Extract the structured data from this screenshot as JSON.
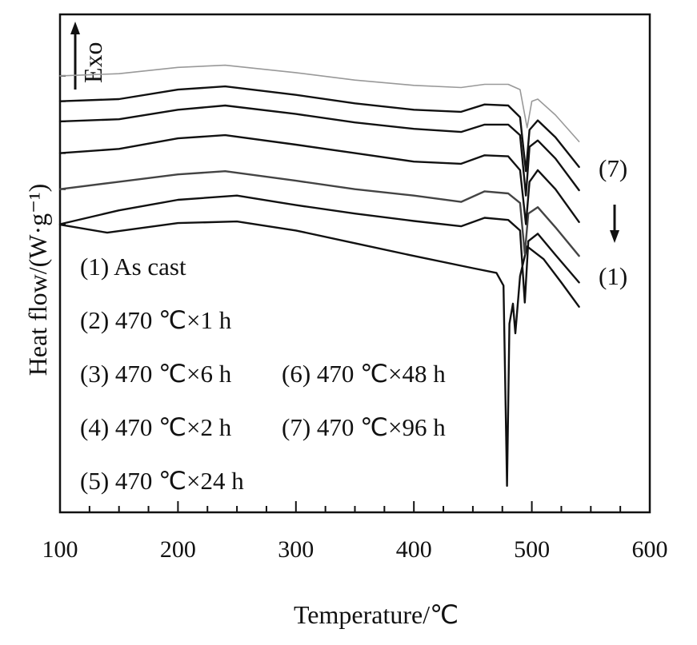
{
  "chart_data": {
    "type": "line",
    "title": "",
    "xlabel": "Temperature/℃",
    "ylabel": "Heat flow/(W·g⁻¹)",
    "exo_label": "Exo",
    "xlim": [
      100,
      600
    ],
    "x_ticks": [
      "100",
      "200",
      "300",
      "400",
      "500",
      "600"
    ],
    "y_ticks_shown": false,
    "grid": false,
    "legend_entries": [
      "(1) As cast",
      "(2) 470 ℃×1 h",
      "(3) 470 ℃×6 h",
      "(4) 470 ℃×2 h",
      "(5) 470 ℃×24 h",
      "(6) 470 ℃×48 h",
      "(7) 470 ℃×96 h"
    ],
    "order_markers": {
      "top": "(7)",
      "bottom": "(1)"
    },
    "series": [
      {
        "name": "(1) As cast",
        "color": "#111111",
        "x": [
          100,
          140,
          200,
          250,
          300,
          350,
          400,
          450,
          470,
          476,
          479,
          481,
          484,
          486,
          490,
          496,
          510,
          525,
          540
        ],
        "y": [
          3.15,
          2.4,
          3.3,
          3.45,
          2.6,
          1.4,
          0.2,
          -0.95,
          -1.4,
          -2.6,
          -21.5,
          -6.2,
          -4.3,
          -7.1,
          -1.7,
          1.1,
          -0.1,
          -2.3,
          -4.6
        ]
      },
      {
        "name": "(2) 470 ℃×1 h",
        "color": "#111111",
        "x": [
          100,
          150,
          200,
          250,
          300,
          350,
          400,
          440,
          460,
          480,
          490,
          494,
          497,
          505,
          520,
          540
        ],
        "y": [
          3.2,
          4.5,
          5.5,
          5.9,
          5.0,
          4.2,
          3.5,
          3.0,
          3.8,
          3.6,
          2.6,
          -4.2,
          1.6,
          2.3,
          0.3,
          -2.3
        ]
      },
      {
        "name": "(3) 470 ℃×6 h",
        "color": "#444444",
        "x": [
          100,
          150,
          200,
          240,
          300,
          350,
          400,
          440,
          460,
          480,
          490,
          494,
          497,
          505,
          520,
          540
        ],
        "y": [
          6.5,
          7.2,
          7.9,
          8.2,
          7.3,
          6.5,
          5.9,
          5.3,
          6.3,
          6.1,
          5.2,
          0.4,
          4.2,
          4.8,
          2.9,
          0.2
        ]
      },
      {
        "name": "(4) 470 ℃×2 h",
        "color": "#111111",
        "x": [
          100,
          150,
          200,
          240,
          300,
          350,
          400,
          440,
          460,
          480,
          490,
          495,
          498,
          505,
          520,
          540
        ],
        "y": [
          9.9,
          10.3,
          11.3,
          11.6,
          10.7,
          9.9,
          9.1,
          8.9,
          9.7,
          9.6,
          8.3,
          3.2,
          7.2,
          8.3,
          6.5,
          3.4
        ]
      },
      {
        "name": "(5) 470 ℃×24 h",
        "color": "#111111",
        "x": [
          100,
          150,
          200,
          240,
          300,
          350,
          400,
          440,
          460,
          480,
          490,
          495,
          498,
          505,
          520,
          540
        ],
        "y": [
          12.9,
          13.1,
          14.0,
          14.4,
          13.6,
          12.8,
          12.2,
          11.9,
          12.6,
          12.6,
          11.6,
          5.9,
          10.5,
          11.1,
          9.4,
          6.4
        ]
      },
      {
        "name": "(6) 470 ℃×48 h",
        "color": "#111111",
        "x": [
          100,
          150,
          200,
          240,
          300,
          350,
          400,
          440,
          460,
          480,
          490,
          495,
          498,
          505,
          520,
          540
        ],
        "y": [
          14.8,
          15.0,
          15.9,
          16.2,
          15.4,
          14.6,
          14.0,
          13.8,
          14.5,
          14.4,
          13.3,
          8.2,
          12.1,
          13.0,
          11.4,
          8.6
        ]
      },
      {
        "name": "(7) 470 ℃×96 h",
        "color": "#999999",
        "x": [
          100,
          150,
          200,
          240,
          300,
          350,
          400,
          440,
          460,
          480,
          490,
          496,
          500,
          505,
          520,
          540
        ],
        "y": [
          17.2,
          17.4,
          18.0,
          18.2,
          17.5,
          16.8,
          16.3,
          16.1,
          16.4,
          16.4,
          15.9,
          12.3,
          14.8,
          15.0,
          13.5,
          11.0
        ]
      }
    ]
  }
}
